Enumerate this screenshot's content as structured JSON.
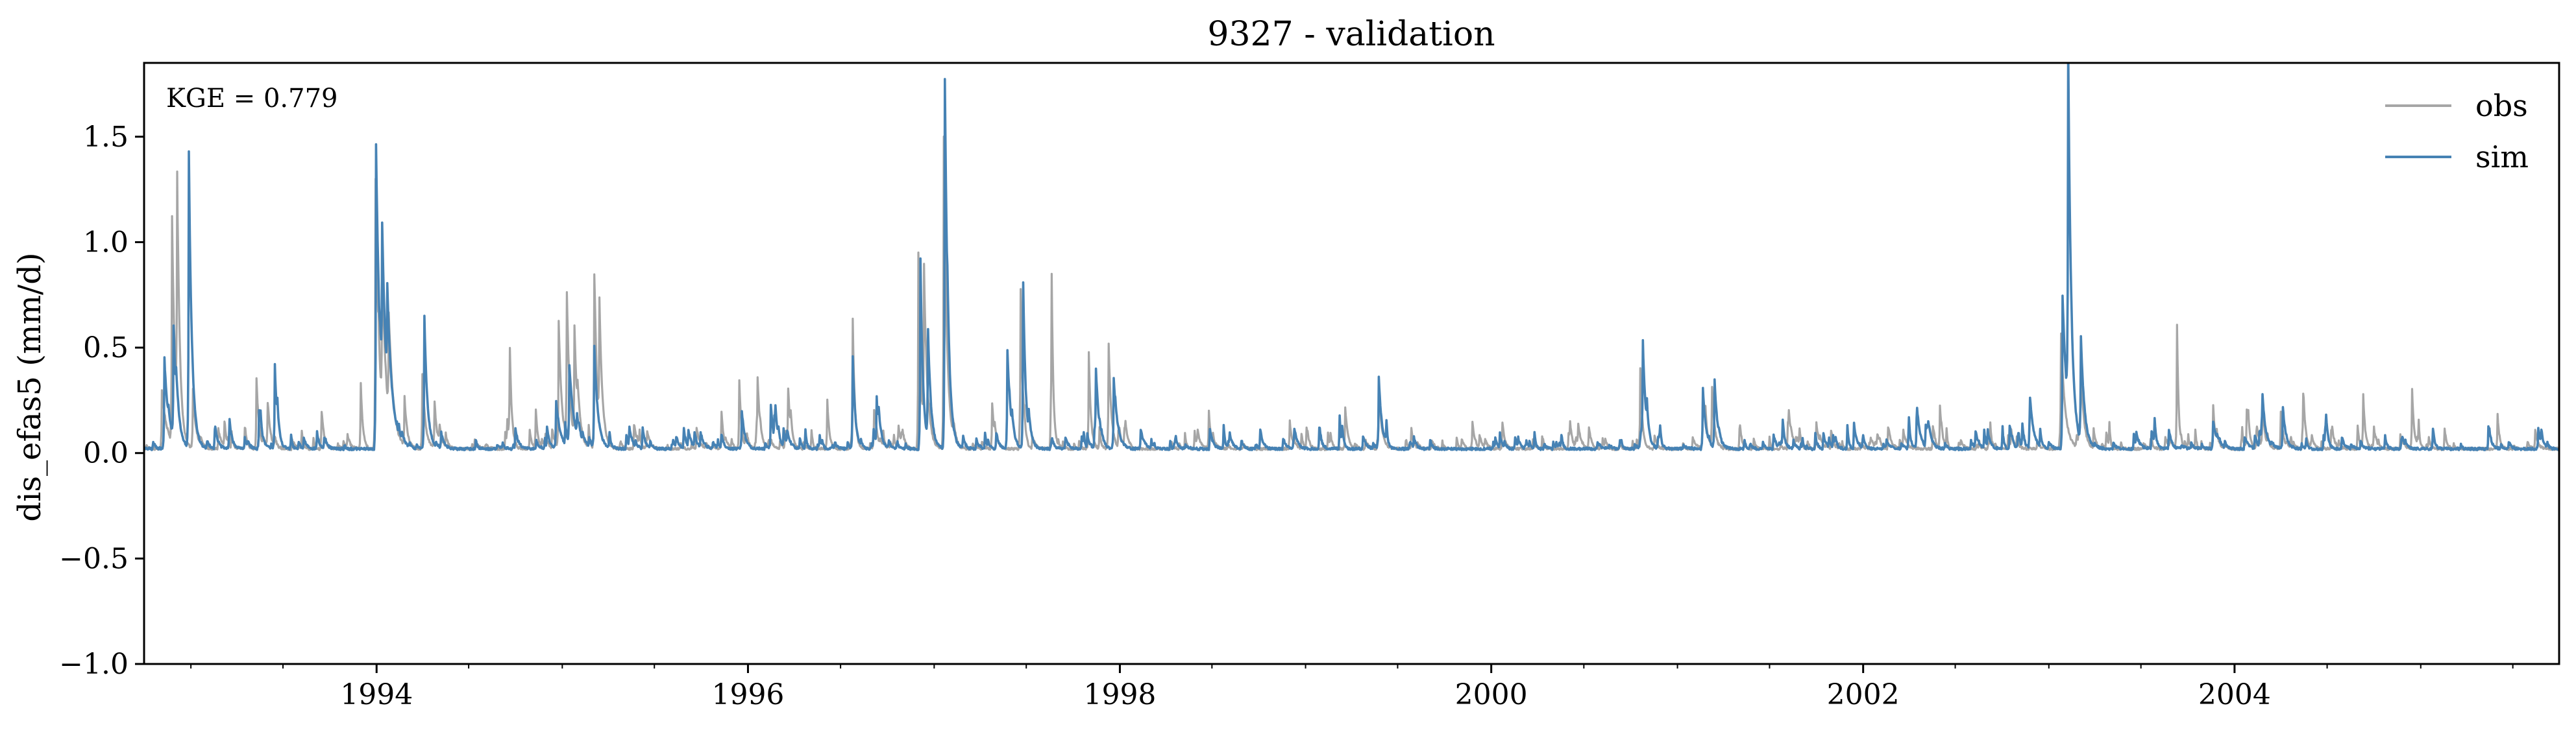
{
  "chart_data": {
    "type": "line",
    "title": "9327 - validation",
    "ylabel": "dis_efas5 (mm/d)",
    "xlabel": "",
    "annotation": "KGE = 0.779",
    "xlim": [
      "1992-10-01",
      "2005-09-30"
    ],
    "ylim": [
      -1.0,
      1.85
    ],
    "y_ticks": [
      {
        "value": -1.0,
        "label": "−1.0"
      },
      {
        "value": -0.5,
        "label": "−0.5"
      },
      {
        "value": 0.0,
        "label": "0.0"
      },
      {
        "value": 0.5,
        "label": "0.5"
      },
      {
        "value": 1.0,
        "label": "1.0"
      },
      {
        "value": 1.5,
        "label": "1.5"
      }
    ],
    "x_ticks": [
      {
        "value": "1994-01-01",
        "label": "1994"
      },
      {
        "value": "1996-01-01",
        "label": "1996"
      },
      {
        "value": "1998-01-01",
        "label": "1998"
      },
      {
        "value": "2000-01-01",
        "label": "2000"
      },
      {
        "value": "2002-01-01",
        "label": "2002"
      },
      {
        "value": "2004-01-01",
        "label": "2004"
      }
    ],
    "x_minor_ticks": [
      "1993-01-01",
      "1993-07-01",
      "1994-07-01",
      "1995-01-01",
      "1995-07-01",
      "1996-07-01",
      "1997-01-01",
      "1997-07-01",
      "1998-07-01",
      "1999-01-01",
      "1999-07-01",
      "2000-07-01",
      "2001-01-01",
      "2001-07-01",
      "2002-07-01",
      "2003-01-01",
      "2003-07-01",
      "2004-07-01",
      "2005-01-01",
      "2005-07-01"
    ],
    "grid": false,
    "legend_position": "top-right",
    "baseline": 0.02,
    "series": [
      {
        "name": "obs",
        "color": "#a6a6a6",
        "peaks": [
          [
            "1992-11-05",
            0.3,
            10
          ],
          [
            "1992-11-25",
            1.08,
            6
          ],
          [
            "1992-12-05",
            1.12,
            5
          ],
          [
            "1993-01-05",
            0.3,
            6
          ],
          [
            "1993-05-10",
            0.35,
            5
          ],
          [
            "1993-06-01",
            0.2,
            5
          ],
          [
            "1993-09-15",
            0.2,
            5
          ],
          [
            "1993-12-01",
            0.33,
            4
          ],
          [
            "1993-12-30",
            1.3,
            7
          ],
          [
            "1994-01-12",
            0.72,
            8
          ],
          [
            "1994-01-25",
            0.5,
            9
          ],
          [
            "1994-02-25",
            0.25,
            5
          ],
          [
            "1994-04-01",
            0.37,
            6
          ],
          [
            "1994-04-25",
            0.24,
            5
          ],
          [
            "1994-09-20",
            0.43,
            4
          ],
          [
            "1994-11-10",
            0.2,
            4
          ],
          [
            "1994-12-25",
            0.62,
            6
          ],
          [
            "1995-01-10",
            0.72,
            6
          ],
          [
            "1995-01-25",
            0.55,
            6
          ],
          [
            "1995-03-05",
            0.83,
            5
          ],
          [
            "1995-03-15",
            0.62,
            6
          ],
          [
            "1995-11-10",
            0.2,
            4
          ],
          [
            "1995-12-15",
            0.35,
            4
          ],
          [
            "1996-01-20",
            0.3,
            5
          ],
          [
            "1996-03-20",
            0.28,
            5
          ],
          [
            "1996-06-05",
            0.25,
            4
          ],
          [
            "1996-07-25",
            0.62,
            4
          ],
          [
            "1996-09-05",
            0.2,
            5
          ],
          [
            "1996-12-01",
            0.95,
            5
          ],
          [
            "1996-12-12",
            0.8,
            6
          ],
          [
            "1997-01-20",
            1.5,
            6
          ],
          [
            "1997-04-25",
            0.2,
            5
          ],
          [
            "1997-06-20",
            0.75,
            4
          ],
          [
            "1997-08-20",
            0.77,
            3
          ],
          [
            "1997-11-01",
            0.48,
            4
          ],
          [
            "1997-12-10",
            0.52,
            5
          ],
          [
            "1998-06-25",
            0.2,
            4
          ],
          [
            "1998-12-01",
            0.15,
            5
          ],
          [
            "1999-03-20",
            0.22,
            5
          ],
          [
            "1999-05-25",
            0.3,
            6
          ],
          [
            "1999-11-25",
            0.15,
            5
          ],
          [
            "2000-06-01",
            0.1,
            6
          ],
          [
            "2000-10-20",
            0.4,
            4
          ],
          [
            "2001-02-20",
            0.3,
            6
          ],
          [
            "2001-03-10",
            0.3,
            5
          ],
          [
            "2001-10-01",
            0.15,
            5
          ],
          [
            "2002-06-01",
            0.22,
            4
          ],
          [
            "2003-01-25",
            0.55,
            8
          ],
          [
            "2003-03-05",
            0.4,
            6
          ],
          [
            "2003-09-10",
            0.6,
            3
          ],
          [
            "2003-11-20",
            0.22,
            4
          ],
          [
            "2004-01-25",
            0.2,
            5
          ],
          [
            "2004-02-25",
            0.25,
            4
          ],
          [
            "2004-04-01",
            0.2,
            5
          ],
          [
            "2004-05-15",
            0.2,
            5
          ],
          [
            "2004-09-10",
            0.27,
            4
          ],
          [
            "2004-12-15",
            0.3,
            4
          ],
          [
            "2005-06-01",
            0.18,
            4
          ]
        ]
      },
      {
        "name": "sim",
        "color": "#4682b4",
        "peaks": [
          [
            "1992-11-10",
            0.45,
            8
          ],
          [
            "1992-11-28",
            0.55,
            7
          ],
          [
            "1992-12-28",
            1.42,
            6
          ],
          [
            "1993-05-15",
            0.2,
            6
          ],
          [
            "1993-06-15",
            0.42,
            5
          ],
          [
            "1993-12-31",
            1.46,
            8
          ],
          [
            "1994-01-12",
            0.75,
            9
          ],
          [
            "1994-01-22",
            0.45,
            10
          ],
          [
            "1994-04-05",
            0.63,
            6
          ],
          [
            "1994-12-20",
            0.25,
            8
          ],
          [
            "1995-01-15",
            0.4,
            9
          ],
          [
            "1995-03-05",
            0.5,
            7
          ],
          [
            "1995-12-20",
            0.2,
            6
          ],
          [
            "1996-02-15",
            0.2,
            5
          ],
          [
            "1996-07-25",
            0.46,
            5
          ],
          [
            "1996-09-10",
            0.25,
            5
          ],
          [
            "1996-12-05",
            0.92,
            5
          ],
          [
            "1996-12-20",
            0.5,
            6
          ],
          [
            "1997-01-22",
            1.77,
            6
          ],
          [
            "1997-05-25",
            0.49,
            6
          ],
          [
            "1997-06-25",
            0.8,
            5
          ],
          [
            "1997-11-15",
            0.35,
            6
          ],
          [
            "1997-12-20",
            0.35,
            7
          ],
          [
            "1998-12-10",
            0.1,
            6
          ],
          [
            "1999-05-25",
            0.36,
            6
          ],
          [
            "2000-10-25",
            0.49,
            6
          ],
          [
            "2001-02-20",
            0.31,
            6
          ],
          [
            "2001-03-15",
            0.34,
            6
          ],
          [
            "2002-11-25",
            0.2,
            8
          ],
          [
            "2003-01-28",
            0.75,
            9
          ],
          [
            "2003-02-08",
            1.71,
            6
          ],
          [
            "2003-03-05",
            0.52,
            7
          ],
          [
            "2003-11-20",
            0.15,
            8
          ],
          [
            "2004-02-25",
            0.2,
            7
          ],
          [
            "2004-04-05",
            0.22,
            6
          ],
          [
            "2005-08-20",
            0.12,
            6
          ]
        ]
      }
    ]
  }
}
